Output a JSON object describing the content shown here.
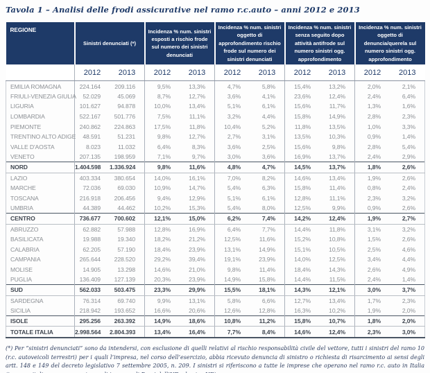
{
  "title": "Tavola 1 – Analisi delle frodi assicurative nel ramo r.c.auto – anni 2012 e 2013",
  "colors": {
    "header_bg": "#1e3a68",
    "header_text": "#ffffff",
    "body_text": "#8b8f94",
    "summary_text": "#3f4650",
    "title_text": "#1e3a68"
  },
  "table": {
    "region_header": "REGIONE",
    "col_groups": [
      "Sinistri denunciati (*)",
      "Incidenza % num. sinistri esposti a rischio frode sul numero dei sinistri denunciati",
      "Incidenza % num. sinistri oggetto di approfondimento rischio frode sul numero dei sinistri denunciati",
      "Incidenza % num. sinistri senza seguito dopo attività antifrode sul numero sinistri ogg. approfondimento",
      "Incidenza % num. sinistri oggetto di denuncia/querela sul numero sinistri ogg. approfondimento"
    ],
    "years": [
      "2012",
      "2013"
    ],
    "rows": [
      {
        "region": "EMILIA ROMAGNA",
        "type": "data",
        "values": [
          "224.164",
          "209.116",
          "9,5%",
          "13,3%",
          "4,7%",
          "5,8%",
          "15,4%",
          "13,2%",
          "2,0%",
          "2,1%"
        ]
      },
      {
        "region": "FRIULI-VENEZIA GIULIA",
        "type": "data",
        "values": [
          "52.029",
          "45.069",
          "8,7%",
          "12,7%",
          "3,6%",
          "4,1%",
          "23,6%",
          "12,4%",
          "2,4%",
          "6,4%"
        ]
      },
      {
        "region": "LIGURIA",
        "type": "data",
        "values": [
          "101.627",
          "94.878",
          "10,0%",
          "13,4%",
          "5,1%",
          "6,1%",
          "15,6%",
          "11,7%",
          "1,3%",
          "1,6%"
        ]
      },
      {
        "region": "LOMBARDIA",
        "type": "data",
        "values": [
          "522.167",
          "501.776",
          "7,5%",
          "11,1%",
          "3,2%",
          "4,4%",
          "15,8%",
          "14,9%",
          "2,8%",
          "2,3%"
        ]
      },
      {
        "region": "PIEMONTE",
        "type": "data",
        "values": [
          "240.862",
          "224.863",
          "17,5%",
          "11,8%",
          "10,4%",
          "5,2%",
          "11,8%",
          "13,5%",
          "1,0%",
          "3,3%"
        ]
      },
      {
        "region": "TRENTINO ALTO ADIGE",
        "type": "data",
        "values": [
          "48.591",
          "51.231",
          "9,8%",
          "12,7%",
          "2,7%",
          "3,1%",
          "13,5%",
          "10,3%",
          "0,9%",
          "1,4%"
        ]
      },
      {
        "region": "VALLE D'AOSTA",
        "type": "data",
        "values": [
          "8.023",
          "11.032",
          "6,4%",
          "8,3%",
          "3,6%",
          "2,5%",
          "15,6%",
          "9,8%",
          "2,8%",
          "5,4%"
        ]
      },
      {
        "region": "VENETO",
        "type": "data",
        "values": [
          "207.135",
          "198.959",
          "7,1%",
          "9,7%",
          "3,0%",
          "3,6%",
          "16,9%",
          "13,7%",
          "2,4%",
          "2,9%"
        ]
      },
      {
        "region": "NORD",
        "type": "summary",
        "values": [
          "1.404.598",
          "1.336.924",
          "9,8%",
          "11,6%",
          "4,8%",
          "4,7%",
          "14,5%",
          "13,7%",
          "1,8%",
          "2,6%"
        ]
      },
      {
        "region": "LAZIO",
        "type": "data",
        "values": [
          "403.334",
          "380.654",
          "14,0%",
          "16,1%",
          "7,0%",
          "8,2%",
          "14,6%",
          "13,4%",
          "1,9%",
          "2,6%"
        ]
      },
      {
        "region": "MARCHE",
        "type": "data",
        "values": [
          "72.036",
          "69.030",
          "10,9%",
          "14,7%",
          "5,4%",
          "6,3%",
          "15,8%",
          "11,4%",
          "0,8%",
          "2,4%"
        ]
      },
      {
        "region": "TOSCANA",
        "type": "data",
        "values": [
          "216.918",
          "206.456",
          "9,4%",
          "12,9%",
          "5,1%",
          "6,1%",
          "12,8%",
          "11,1%",
          "2,3%",
          "3,2%"
        ]
      },
      {
        "region": "UMBRIA",
        "type": "data",
        "values": [
          "44.389",
          "44.462",
          "10,2%",
          "15,3%",
          "5,4%",
          "8,0%",
          "12,5%",
          "9,9%",
          "0,9%",
          "2,6%"
        ]
      },
      {
        "region": "CENTRO",
        "type": "summary",
        "values": [
          "736.677",
          "700.602",
          "12,1%",
          "15,0%",
          "6,2%",
          "7,4%",
          "14,2%",
          "12,4%",
          "1,9%",
          "2,7%"
        ]
      },
      {
        "region": "ABRUZZO",
        "type": "data",
        "values": [
          "62.882",
          "57.988",
          "12,8%",
          "16,9%",
          "6,4%",
          "7,7%",
          "14,4%",
          "11,8%",
          "3,1%",
          "3,2%"
        ]
      },
      {
        "region": "BASILICATA",
        "type": "data",
        "values": [
          "19.988",
          "19.340",
          "18,2%",
          "21,2%",
          "12,5%",
          "11,6%",
          "15,2%",
          "10,8%",
          "1,5%",
          "2,6%"
        ]
      },
      {
        "region": "CALABRIA",
        "type": "data",
        "values": [
          "62.205",
          "57.190",
          "18,4%",
          "23,9%",
          "13,1%",
          "14,9%",
          "15,1%",
          "10,5%",
          "2,5%",
          "4,6%"
        ]
      },
      {
        "region": "CAMPANIA",
        "type": "data",
        "values": [
          "265.644",
          "228.520",
          "29,2%",
          "39,4%",
          "19,1%",
          "23,9%",
          "14,0%",
          "12,5%",
          "3,4%",
          "4,4%"
        ]
      },
      {
        "region": "MOLISE",
        "type": "data",
        "values": [
          "14.905",
          "13.298",
          "14,6%",
          "21,0%",
          "9,8%",
          "11,4%",
          "18,4%",
          "14,3%",
          "2,6%",
          "4,9%"
        ]
      },
      {
        "region": "PUGLIA",
        "type": "data",
        "values": [
          "136.409",
          "127.139",
          "20,3%",
          "23,9%",
          "14,9%",
          "15,8%",
          "14,4%",
          "11,5%",
          "2,4%",
          "1,4%"
        ]
      },
      {
        "region": "SUD",
        "type": "summary",
        "values": [
          "562.033",
          "503.475",
          "23,3%",
          "29,9%",
          "15,5%",
          "18,1%",
          "14,3%",
          "12,1%",
          "3,0%",
          "3,7%"
        ]
      },
      {
        "region": "SARDEGNA",
        "type": "data",
        "values": [
          "76.314",
          "69.740",
          "9,9%",
          "13,1%",
          "5,8%",
          "6,6%",
          "12,7%",
          "13,4%",
          "1,7%",
          "2,3%"
        ]
      },
      {
        "region": "SICILIA",
        "type": "data",
        "values": [
          "218.942",
          "193.652",
          "16,6%",
          "20,6%",
          "12,6%",
          "12,8%",
          "16,3%",
          "10,2%",
          "1,9%",
          "2,0%"
        ]
      },
      {
        "region": "ISOLE",
        "type": "summary",
        "values": [
          "295.256",
          "263.392",
          "14,9%",
          "18,6%",
          "10,8%",
          "11,2%",
          "15,8%",
          "10,7%",
          "1,8%",
          "2,0%"
        ]
      },
      {
        "region": "TOTALE ITALIA",
        "type": "total",
        "values": [
          "2.998.564",
          "2.804.393",
          "13,4%",
          "16,4%",
          "7,7%",
          "8,4%",
          "14,6%",
          "12,4%",
          "2,3%",
          "3,0%"
        ]
      }
    ]
  },
  "footnote": "(*)  Per “sinistri denunciati” sono da intendersi, con esclusione di quelli relativi al rischio responsabilità civile del vettore, tutti i sinistri del ramo 10 (r.c. autoveicoli terrestri) per i quali l’impresa, nel corso dell’esercizio, abbia ricevuto denuncia di sinistro o richiesta di risarcimento ai sensi degli artt. 148 e 149 del decreto legislativo 7 settembre 2005, n. 209. I sinistri si riferiscono a tutte le imprese che operano nel ramo r.c. auto in Italia (imprese italiane, rappresentanze di imprese di Paesi dell’UE ed extra UE)"
}
